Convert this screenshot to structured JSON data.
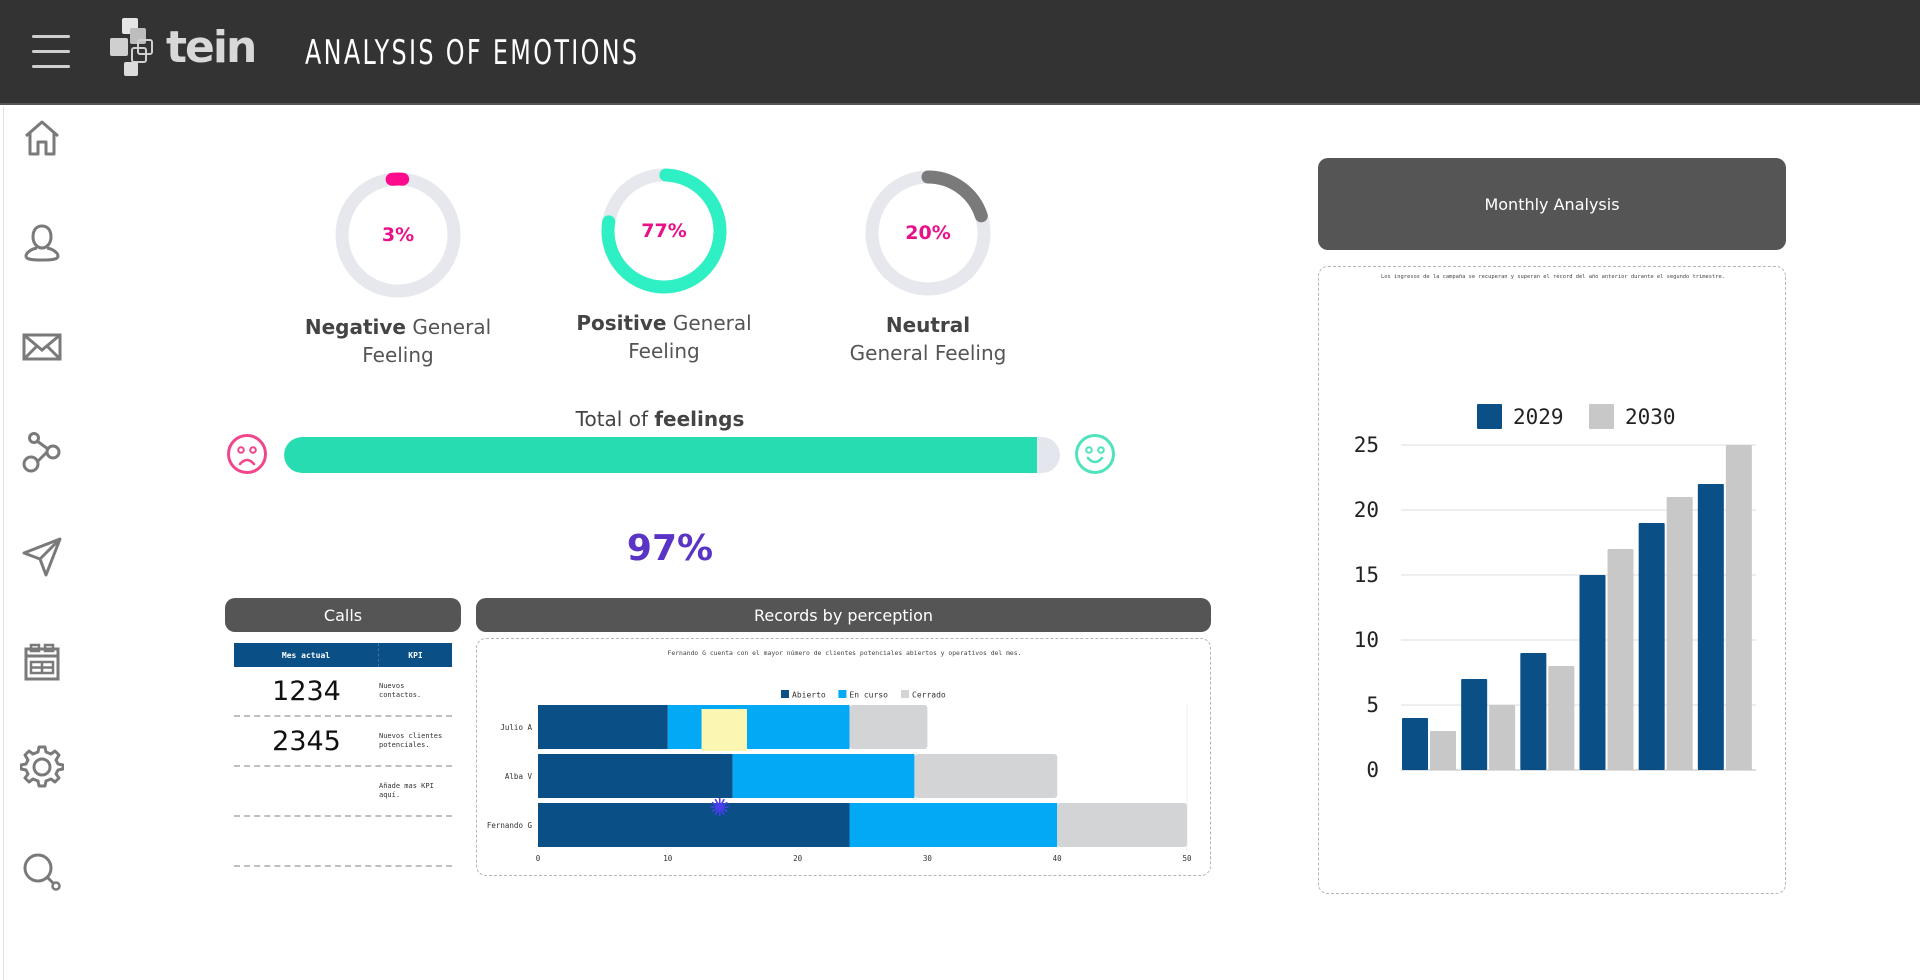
{
  "header": {
    "menu_icon": "hamburger-icon",
    "logo_text": "tein",
    "title": "ANALYSIS OF EMOTIONS"
  },
  "sidebar": {
    "items": [
      {
        "icon": "home-icon",
        "label": "Home"
      },
      {
        "icon": "user-icon",
        "label": "Profile"
      },
      {
        "icon": "mail-icon",
        "label": "Messages"
      },
      {
        "icon": "share-icon",
        "label": "Share"
      },
      {
        "icon": "send-icon",
        "label": "Send"
      },
      {
        "icon": "calendar-icon",
        "label": "Calendar"
      },
      {
        "icon": "gear-icon",
        "label": "Settings"
      },
      {
        "icon": "search-icon",
        "label": "Search"
      }
    ]
  },
  "gauges": [
    {
      "value_text": "3%",
      "value": 3,
      "bold": "Negative",
      "rest": " General",
      "line2": "Feeling",
      "color": "#ff0a8c"
    },
    {
      "value_text": "77%",
      "value": 77,
      "bold": "Positive",
      "rest": " General",
      "line2": "Feeling",
      "color": "#2ef0c4"
    },
    {
      "value_text": "20%",
      "value": 20,
      "bold": "Neutral",
      "rest": "",
      "line2": "General Feeling",
      "color": "#7a7a7a"
    }
  ],
  "total": {
    "title_prefix": "Total of ",
    "title_bold": "feelings",
    "progress_percent": 97,
    "value_text": "97%",
    "left_icon": "sad-face-icon",
    "right_icon": "happy-face-icon",
    "fill_color": "#27dcb0"
  },
  "calls": {
    "title": "Calls",
    "columns": [
      "Mes actual",
      "KPI"
    ],
    "rows": [
      {
        "value": "1234",
        "kpi": "Nuevos contactos."
      },
      {
        "value": "2345",
        "kpi": "Nuevos clientes potenciales."
      },
      {
        "value": "",
        "kpi": "Añade mas KPI aquí."
      },
      {
        "value": "",
        "kpi": ""
      }
    ]
  },
  "records": {
    "title": "Records by perception"
  },
  "monthly": {
    "title": "Monthly Analysis"
  },
  "chart_data": [
    {
      "type": "bar",
      "orientation": "horizontal",
      "stacked": true,
      "title": "Fernando G cuenta con el mayor número de clientes potenciales abiertos y operativos del mes.",
      "categories": [
        "Julio A",
        "Alba V",
        "Fernando G"
      ],
      "series": [
        {
          "name": "Abierto",
          "color": "#0a4f86",
          "values": [
            10,
            15,
            24
          ]
        },
        {
          "name": "En curso",
          "color": "#03a9f4",
          "values": [
            14,
            14,
            16
          ]
        },
        {
          "name": "Cerrado",
          "color": "#d3d4d6",
          "values": [
            6,
            11,
            10
          ]
        }
      ],
      "xlim": [
        0,
        50
      ],
      "xticks": [
        0,
        10,
        20,
        30,
        40,
        50
      ],
      "legend": "top",
      "annotations": [
        "yellow sticky note over Julio A bar",
        "blue asterisk cursor mark near Alba V / Fernando G"
      ]
    },
    {
      "type": "bar",
      "title": "Los ingresos de la campaña se recuperan y superan el récord del año anterior durante el segundo trimestre.",
      "categories": [
        "",
        "",
        "",
        "",
        "",
        ""
      ],
      "series": [
        {
          "name": "2029",
          "color": "#0a4f86",
          "values": [
            4,
            7,
            9,
            15,
            19,
            22
          ]
        },
        {
          "name": "2030",
          "color": "#c8c8c8",
          "values": [
            3,
            5,
            8,
            17,
            21,
            25
          ]
        }
      ],
      "ylim": [
        0,
        25
      ],
      "yticks": [
        0,
        5,
        10,
        15,
        20,
        25
      ],
      "grid": true,
      "legend": "top"
    }
  ]
}
